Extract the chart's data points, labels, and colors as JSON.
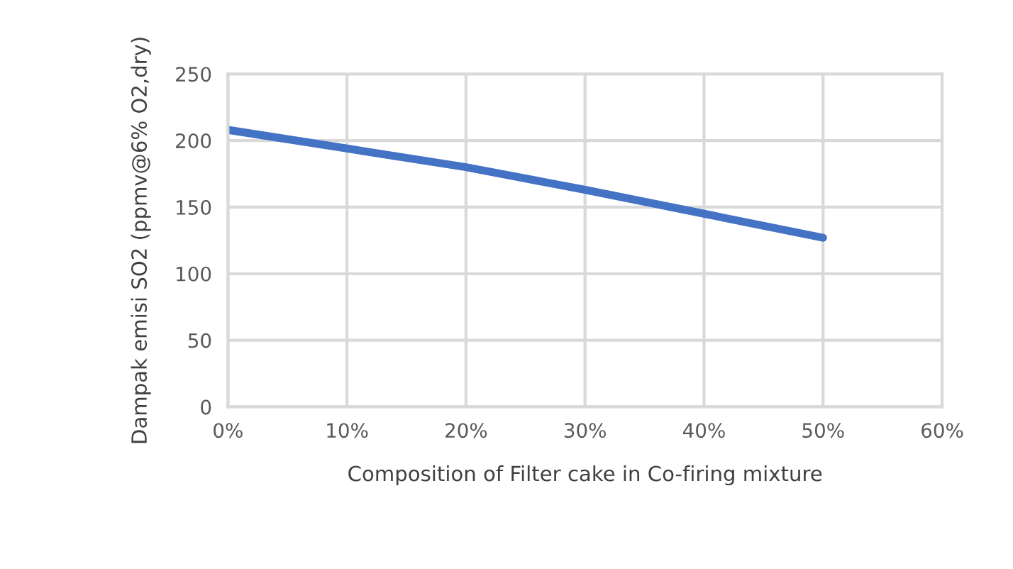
{
  "chart_data": {
    "type": "line",
    "xlabel": "Composition of Filter cake in Co-firing mixture",
    "ylabel": "Dampak emisi SO2 (ppmv@6% O2,dry)",
    "x": [
      0,
      0.1,
      0.2,
      0.3,
      0.4,
      0.5
    ],
    "series": [
      {
        "color": "#4472c4",
        "values": [
          208,
          194,
          180,
          163,
          145,
          127
        ]
      }
    ],
    "xlim": [
      0,
      0.6
    ],
    "xticks": [
      {
        "value": 0,
        "label": "0%"
      },
      {
        "value": 0.1,
        "label": "10%"
      },
      {
        "value": 0.2,
        "label": "20%"
      },
      {
        "value": 0.3,
        "label": "30%"
      },
      {
        "value": 0.4,
        "label": "40%"
      },
      {
        "value": 0.5,
        "label": "50%"
      },
      {
        "value": 0.6,
        "label": "60%"
      }
    ],
    "ylim": [
      0,
      250
    ],
    "yticks": [
      0,
      50,
      100,
      150,
      200,
      250
    ],
    "grid": true,
    "marker": "none",
    "line_style": "solid",
    "legend": false
  }
}
